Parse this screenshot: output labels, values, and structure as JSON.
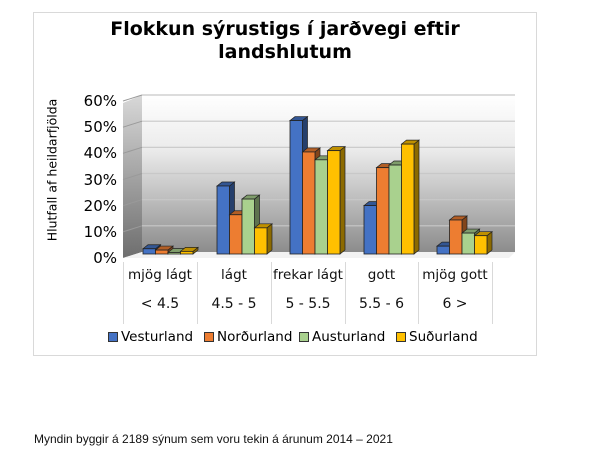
{
  "title_line1": "Flokkun sýrustigs í jarðvegi eftir",
  "title_line2": "landshlutum",
  "y_axis_label": "Hlutfall  af heildarfjölda",
  "y_ticks": [
    "60%",
    "50%",
    "40%",
    "30%",
    "20%",
    "10%",
    "0%"
  ],
  "categories": [
    {
      "name": "mjög lágt",
      "range": "< 4.5"
    },
    {
      "name": "lágt",
      "range": "4.5 - 5"
    },
    {
      "name": "frekar lágt",
      "range": "5 - 5.5"
    },
    {
      "name": "gott",
      "range": "5.5 - 6"
    },
    {
      "name": "mjög gott",
      "range": "6 >"
    }
  ],
  "legend": [
    {
      "label": "Vesturland",
      "color": "#4472c4"
    },
    {
      "label": "Norðurland",
      "color": "#ed7d31"
    },
    {
      "label": "Austurland",
      "color": "#a9d18e"
    },
    {
      "label": "Suðurland",
      "color": "#ffc000"
    }
  ],
  "footnote": "Myndin byggir á 2189  sýnum sem voru tekin á árunum 2014  – 2021",
  "chart_data": {
    "type": "bar",
    "title": "Flokkun sýrustigs í jarðvegi eftir landshlutum",
    "xlabel": "",
    "ylabel": "Hlutfall  af heildarfjölda",
    "ylim": [
      0,
      60
    ],
    "y_unit": "%",
    "grid": true,
    "legend_position": "bottom",
    "categories": [
      "mjög lágt < 4.5",
      "lágt 4.5 - 5",
      "frekar lágt 5 - 5.5",
      "gott 5.5 - 6",
      "mjög gott 6 >"
    ],
    "series": [
      {
        "name": "Vesturland",
        "color": "#4472c4",
        "values": [
          2,
          26,
          51,
          18.5,
          3
        ]
      },
      {
        "name": "Norðurland",
        "color": "#ed7d31",
        "values": [
          1.5,
          15,
          39,
          33,
          13
        ]
      },
      {
        "name": "Austurland",
        "color": "#a9d18e",
        "values": [
          0.5,
          21,
          36,
          34,
          8
        ]
      },
      {
        "name": "Suðurland",
        "color": "#ffc000",
        "values": [
          1,
          10,
          39.5,
          42,
          7
        ]
      }
    ],
    "footnote": "Myndin byggir á 2189  sýnum sem voru tekin á árunum 2014  – 2021"
  }
}
